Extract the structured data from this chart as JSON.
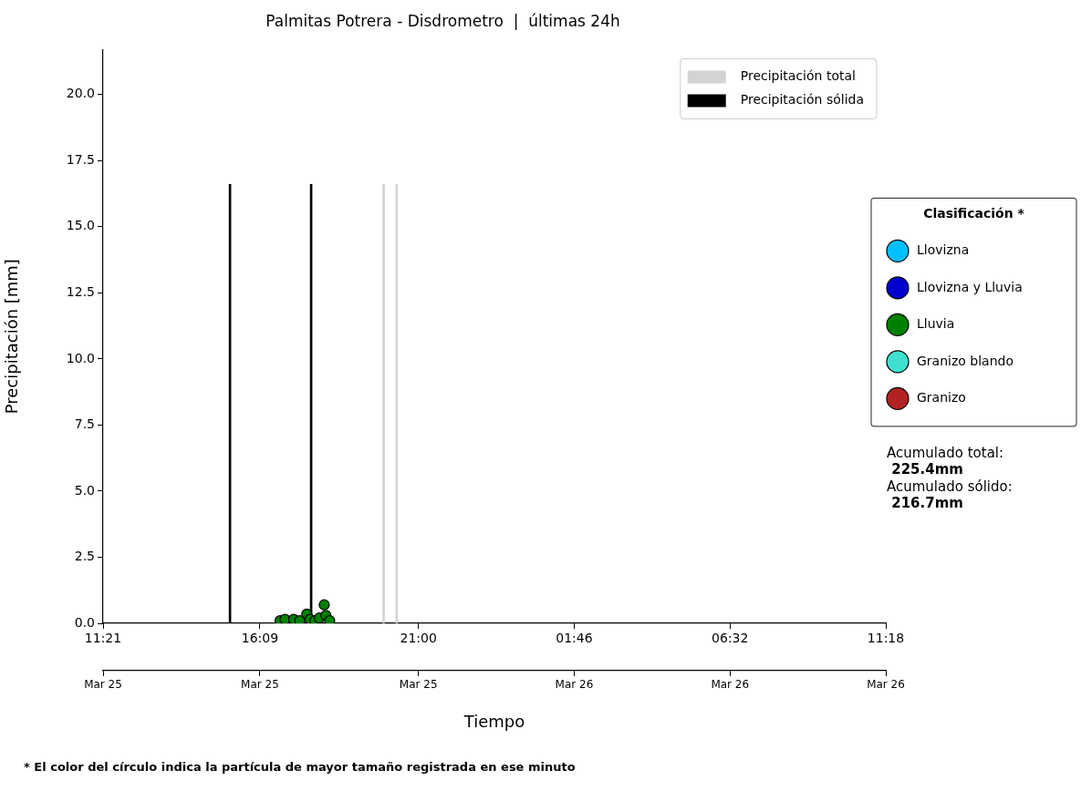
{
  "chart_data": {
    "type": "bar",
    "title": "Palmitas Potrera - Disdrometro  |  últimas 24h",
    "xlabel": "Tiempo",
    "ylabel": "Precipitación [mm]",
    "legend_title": "Clasificación *",
    "xlim": [
      "--03-25T11:21",
      "--03-26T11:18"
    ],
    "xticks": [
      {
        "value": "--03-25T11:21",
        "label": "11:21"
      },
      {
        "value": "--03-25T16:09",
        "label": "16:09"
      },
      {
        "value": "--03-25T21:00",
        "label": "21:00"
      },
      {
        "value": "--03-26T01:46",
        "label": "01:46"
      },
      {
        "value": "--03-26T06:32",
        "label": "06:32"
      },
      {
        "value": "--03-26T11:18",
        "label": "11:18"
      }
    ],
    "x2lim": [
      "--03-25T11:21",
      "--03-26T11:18"
    ],
    "x2ticks": [
      {
        "value": "--03-25T11:21",
        "label": "Mar 25"
      },
      {
        "value": "--03-25T16:09",
        "label": "Mar 25"
      },
      {
        "value": "--03-25T21:00",
        "label": "Mar 25"
      },
      {
        "value": "--03-26T01:46",
        "label": "Mar 26"
      },
      {
        "value": "--03-26T06:32",
        "label": "Mar 26"
      },
      {
        "value": "--03-26T11:18",
        "label": "Mar 26"
      }
    ],
    "ylim": [
      0,
      21.7
    ],
    "yticks": [
      {
        "value": 0,
        "label": "0.0"
      },
      {
        "value": 2.5,
        "label": "2.5"
      },
      {
        "value": 5,
        "label": "5.0"
      },
      {
        "value": 7.5,
        "label": "7.5"
      },
      {
        "value": 10,
        "label": "10.0"
      },
      {
        "value": 12.5,
        "label": "12.5"
      },
      {
        "value": 15,
        "label": "15.0"
      },
      {
        "value": 17.5,
        "label": "17.5"
      },
      {
        "value": 20,
        "label": "20.0"
      }
    ],
    "grid": false,
    "legend": "right",
    "marker": "circle",
    "series": [
      {
        "name": "Precipitación total",
        "color": "#d3d3d3",
        "x": [
          "--03-25T19:56",
          "--03-25T20:20"
        ],
        "values": [
          16.6,
          16.6
        ]
      },
      {
        "name": "Precipitación sólida",
        "color": "#000000",
        "x": [
          "--03-25T15:14",
          "--03-25T17:43"
        ],
        "values": [
          16.6,
          16.6
        ]
      },
      {
        "name": "Llovizna",
        "type": "scatter",
        "color": "#00bfff"
      },
      {
        "name": "Llovizna y Lluvia",
        "type": "scatter",
        "color": "#0000cd"
      },
      {
        "name": "Lluvia",
        "type": "scatter",
        "color": "#008000",
        "x": [
          "--03-25T16:46",
          "--03-25T16:55",
          "--03-25T17:11",
          "--03-25T17:22",
          "--03-25T17:35",
          "--03-25T17:41",
          "--03-25T17:50",
          "--03-25T17:58",
          "--03-25T18:07",
          "--03-25T18:10",
          "--03-25T18:17"
        ],
        "values": [
          0.1,
          0.15,
          0.15,
          0.1,
          0.35,
          0.15,
          0.1,
          0.2,
          0.7,
          0.3,
          0.1
        ]
      },
      {
        "name": "Granizo blando",
        "type": "scatter",
        "color": "#40e0d0"
      },
      {
        "name": "Granizo",
        "type": "scatter",
        "color": "#b22222"
      }
    ],
    "annotations": [
      "Acumulado total:\n 225.4mm",
      "Acumulado sólido:\n 216.7mm",
      "* El color del círculo indica la partícula de mayor tamaño registrada en ese minuto"
    ]
  }
}
